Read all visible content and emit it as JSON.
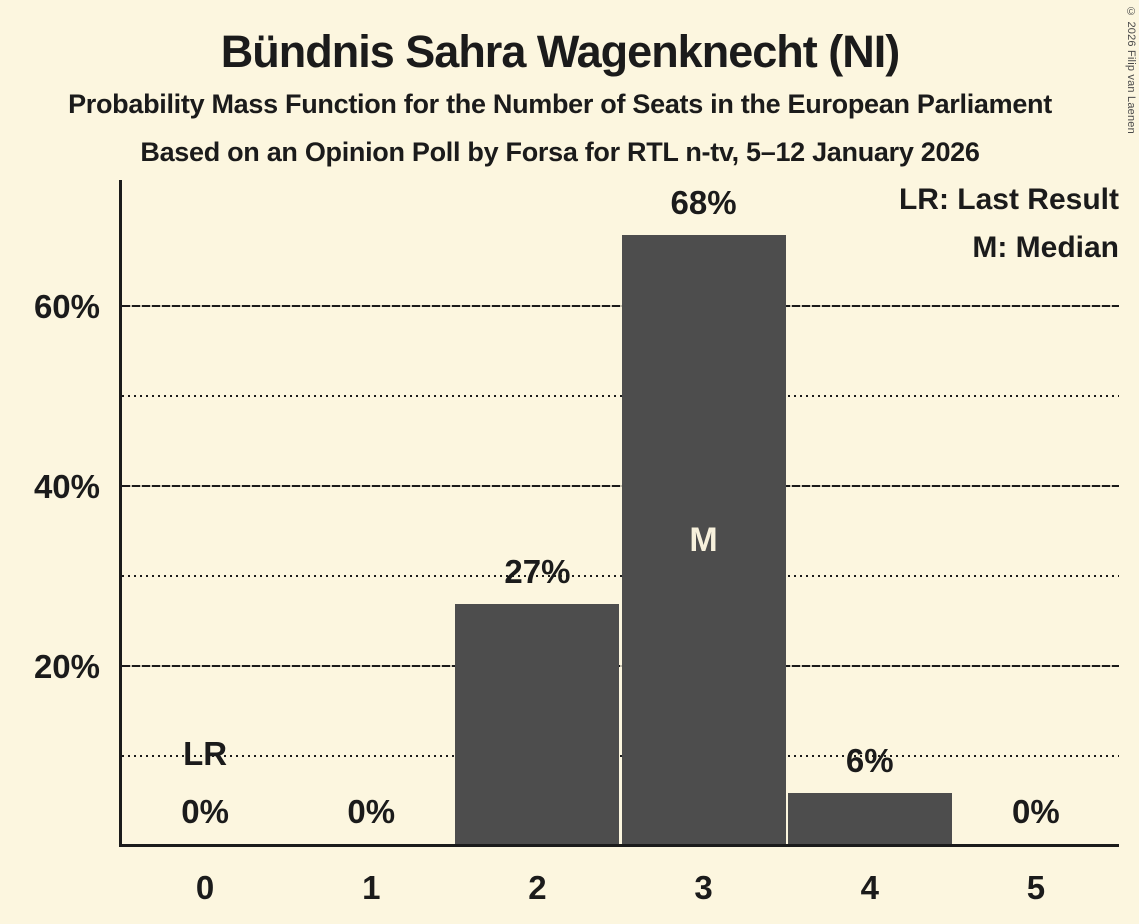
{
  "title": "Bündnis Sahra Wagenknecht (NI)",
  "subtitle": "Probability Mass Function for the Number of Seats in the European Parliament",
  "source_line": "Based on an Opinion Poll by Forsa for RTL n-tv, 5–12 January 2026",
  "copyright": "© 2026 Filip van Laenen",
  "legend": {
    "lr": "LR: Last Result",
    "m": "M: Median"
  },
  "colors": {
    "background": "#FCF6DF",
    "bar": "#4D4D4D",
    "text": "#1B1B1B",
    "bar_inner_label": "#F7F1DC"
  },
  "chart_data": {
    "type": "bar",
    "title": "Bündnis Sahra Wagenknecht (NI)",
    "categories": [
      "0",
      "1",
      "2",
      "3",
      "4",
      "5"
    ],
    "values": [
      0,
      0,
      27,
      68,
      6,
      0
    ],
    "value_labels": [
      "0%",
      "0%",
      "27%",
      "68%",
      "6%",
      "0%"
    ],
    "xlabel": "",
    "ylabel": "",
    "ylim": [
      0,
      74
    ],
    "yticks": [
      20,
      40,
      60
    ],
    "ytick_labels": [
      "20%",
      "40%",
      "60%"
    ],
    "solid_gridlines": [
      20,
      40,
      60
    ],
    "dotted_gridlines": [
      10,
      30,
      50
    ],
    "grid": true,
    "legend_position": "top-right",
    "annotations": {
      "last_result_seats": 0,
      "last_result_label": "LR",
      "median_seats": 3,
      "median_label": "M"
    }
  }
}
